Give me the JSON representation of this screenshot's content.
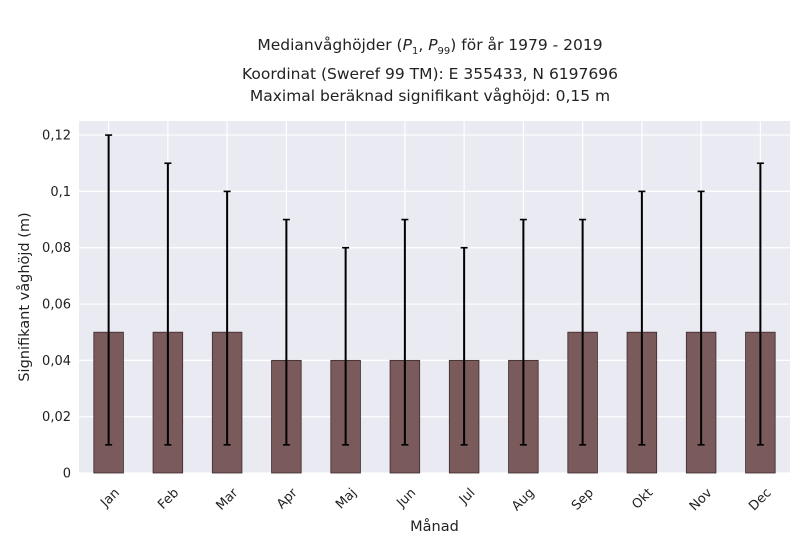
{
  "chart_data": {
    "type": "bar",
    "title_lines": [
      "Medianvåghöjder (P1, P99) för år 1979 - 2019",
      "Koordinat (Sweref 99 TM): E 355433, N 6197696",
      "Maximal beräknad signifikant våghöjd: 0,15 m"
    ],
    "title_parts": {
      "prefix": "Medianvåghöjder (",
      "p1_base": "P",
      "p1_sub": "1",
      "sep": ", ",
      "p99_base": "P",
      "p99_sub": "99",
      "suffix": ") för år 1979 - 2019"
    },
    "xlabel": "Månad",
    "ylabel": "Signifikant våghöjd (m)",
    "categories": [
      "Jan",
      "Feb",
      "Mar",
      "Apr",
      "Maj",
      "Jun",
      "Jul",
      "Aug",
      "Sep",
      "Okt",
      "Nov",
      "Dec"
    ],
    "values": [
      0.05,
      0.05,
      0.05,
      0.04,
      0.04,
      0.04,
      0.04,
      0.04,
      0.05,
      0.05,
      0.05,
      0.05
    ],
    "p1": [
      0.01,
      0.01,
      0.01,
      0.01,
      0.01,
      0.01,
      0.01,
      0.01,
      0.01,
      0.01,
      0.01,
      0.01
    ],
    "p99": [
      0.12,
      0.11,
      0.1,
      0.09,
      0.08,
      0.09,
      0.08,
      0.09,
      0.09,
      0.1,
      0.1,
      0.11
    ],
    "ylim": [
      0,
      0.125
    ],
    "yticks": [
      0,
      0.02,
      0.04,
      0.06,
      0.08,
      0.1,
      0.12
    ],
    "ytick_labels": [
      "0",
      "0,02",
      "0,04",
      "0,06",
      "0,08",
      "0,1",
      "0,12"
    ],
    "grid": true,
    "colors": {
      "bar": "#7a5a5a",
      "bar_edge": "#3a2a2a",
      "errorbar": "#000000",
      "plot_background": "#eaeaf2",
      "grid": "#ffffff"
    }
  }
}
